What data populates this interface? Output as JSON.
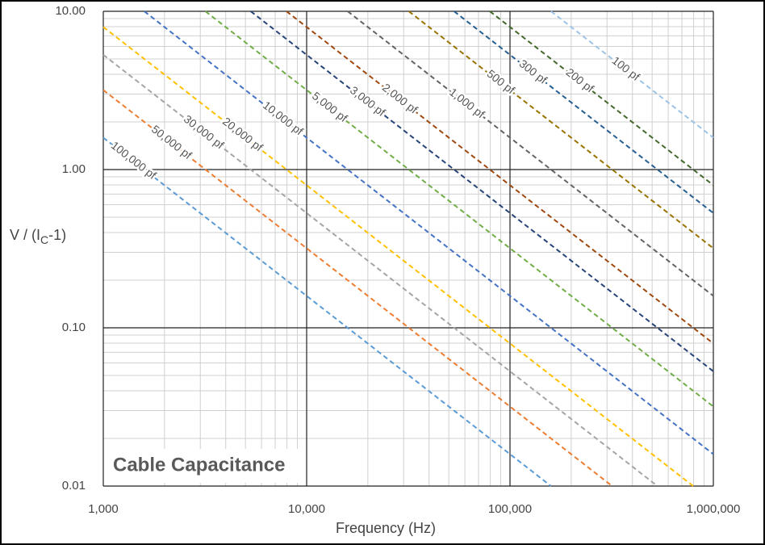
{
  "chart_data": {
    "type": "line",
    "log_x": true,
    "log_y": true,
    "grid": true,
    "minor_grid": true,
    "xlabel": "Frequency (Hz)",
    "ylabel": [
      "V / (I",
      "C",
      "-1)"
    ],
    "annotation": "Cable Capacitance",
    "xlim": [
      1000,
      1000000
    ],
    "ylim": [
      0.01,
      10
    ],
    "xticks": [
      {
        "value": 1000,
        "label": "1,000"
      },
      {
        "value": 10000,
        "label": "10,000"
      },
      {
        "value": 100000,
        "label": "100,000"
      },
      {
        "value": 1000000,
        "label": "1,000,000"
      }
    ],
    "yticks": [
      0.01,
      {
        "value": 0.1,
        "label": "0.10"
      },
      {
        "value": 1,
        "label": "1.00"
      },
      {
        "value": 10,
        "label": "10.00"
      }
    ],
    "series": [
      {
        "name": "100,000 pf",
        "color": "#5b9bd5",
        "x": [
          1000,
          159000
        ],
        "values": [
          1.59,
          0.01
        ]
      },
      {
        "name": "50,000 pf",
        "color": "#ed7d31",
        "x": [
          1000,
          318000
        ],
        "values": [
          3.18,
          0.01
        ]
      },
      {
        "name": "30,000 pf",
        "color": "#a5a5a5",
        "x": [
          1000,
          531000
        ],
        "values": [
          5.31,
          0.01
        ]
      },
      {
        "name": "20,000 pf",
        "color": "#ffc000",
        "x": [
          1000,
          796000
        ],
        "values": [
          7.96,
          0.01
        ]
      },
      {
        "name": "10,000 pf",
        "color": "#4472c4",
        "x": [
          1590,
          1000000
        ],
        "values": [
          10,
          0.0159
        ]
      },
      {
        "name": "5,000 pf",
        "color": "#70ad47",
        "x": [
          3180,
          1000000
        ],
        "values": [
          10,
          0.0318
        ]
      },
      {
        "name": "3,000 pf",
        "color": "#264478",
        "x": [
          5310,
          1000000
        ],
        "values": [
          10,
          0.0531
        ]
      },
      {
        "name": "2,000 pf",
        "color": "#9e480e",
        "x": [
          7960,
          1000000
        ],
        "values": [
          10,
          0.0796
        ]
      },
      {
        "name": "1,000 pf",
        "color": "#636363",
        "x": [
          15900,
          1000000
        ],
        "values": [
          10,
          0.159
        ]
      },
      {
        "name": "500 pf",
        "color": "#997300",
        "x": [
          31800,
          1000000
        ],
        "values": [
          10,
          0.318
        ]
      },
      {
        "name": "300 pf",
        "color": "#255e91",
        "x": [
          53100,
          1000000
        ],
        "values": [
          10,
          0.531
        ]
      },
      {
        "name": "200 pf",
        "color": "#43682b",
        "x": [
          79600,
          1000000
        ],
        "values": [
          10,
          0.796
        ]
      },
      {
        "name": "100 pf",
        "color": "#9dc3e6",
        "x": [
          159000,
          1000000
        ],
        "values": [
          10,
          1.59
        ]
      }
    ]
  }
}
